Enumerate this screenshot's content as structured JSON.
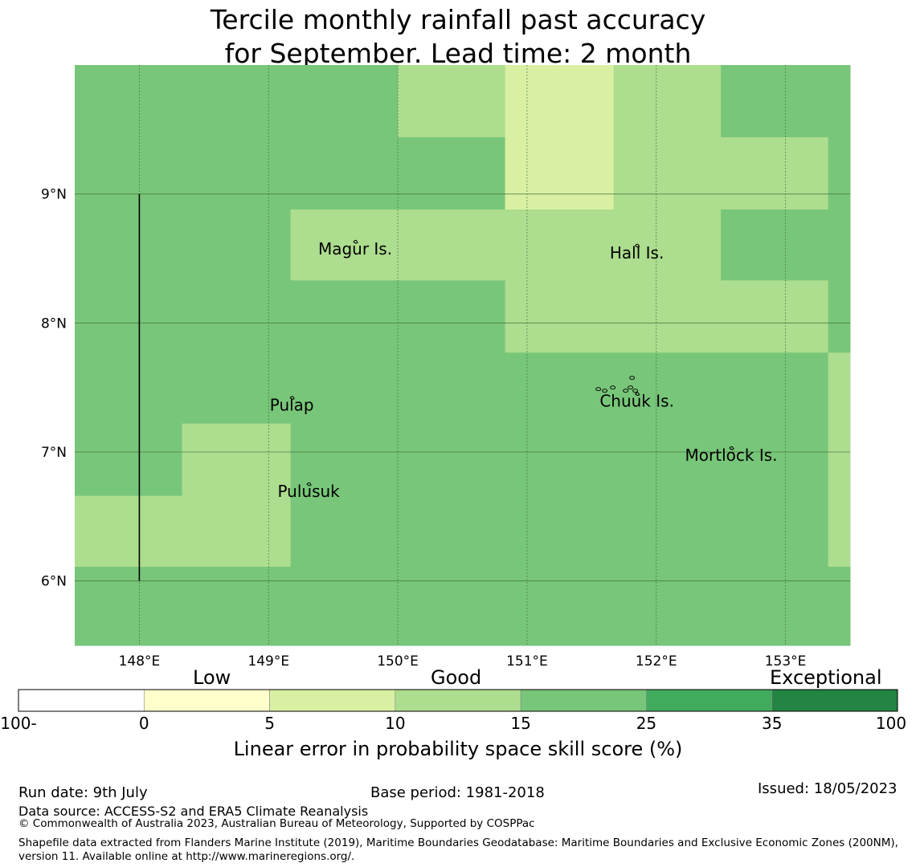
{
  "title_line1": "Tercile monthly rainfall past accuracy",
  "title_line2": "for September. Lead time: 2 month",
  "map": {
    "lon_range": [
      147.5,
      153.5
    ],
    "lat_range": [
      5.5,
      10.0
    ],
    "lon_ticks": [
      {
        "value": 148,
        "label": "148°E"
      },
      {
        "value": 149,
        "label": "149°E"
      },
      {
        "value": 150,
        "label": "150°E"
      },
      {
        "value": 151,
        "label": "151°E"
      },
      {
        "value": 152,
        "label": "152°E"
      },
      {
        "value": 153,
        "label": "153°E"
      }
    ],
    "lat_ticks": [
      {
        "value": 9,
        "label": "9°N"
      },
      {
        "value": 8,
        "label": "8°N"
      },
      {
        "value": 7,
        "label": "7°N"
      },
      {
        "value": 6,
        "label": "6°N"
      }
    ],
    "grid_lon_edges": [
      147.5,
      148.33,
      149.17,
      150.0,
      150.83,
      151.67,
      152.5,
      153.33,
      153.5
    ],
    "grid_lat_edges": [
      10.0,
      9.44,
      8.88,
      8.33,
      7.77,
      7.22,
      6.66,
      6.11,
      5.5
    ],
    "skill_grid": [
      [
        20,
        20,
        20,
        12,
        8,
        12,
        20,
        20
      ],
      [
        20,
        20,
        20,
        20,
        8,
        12,
        12,
        20
      ],
      [
        20,
        20,
        12,
        12,
        12,
        12,
        20,
        20
      ],
      [
        20,
        20,
        20,
        20,
        12,
        12,
        12,
        20
      ],
      [
        20,
        20,
        20,
        20,
        20,
        20,
        20,
        12
      ],
      [
        20,
        12,
        20,
        20,
        20,
        20,
        20,
        12
      ],
      [
        12,
        12,
        20,
        20,
        20,
        20,
        20,
        12
      ],
      [
        20,
        20,
        20,
        20,
        20,
        20,
        20,
        20
      ]
    ],
    "boundary_line": {
      "lon": 148.0,
      "lat_from": 6.0,
      "lat_to": 9.0
    },
    "islands": [
      {
        "name": "Magur Is.",
        "lon": 149.67,
        "lat": 8.58
      },
      {
        "name": "Hall Is.",
        "lon": 151.85,
        "lat": 8.55
      },
      {
        "name": "Pulap",
        "lon": 149.18,
        "lat": 7.37
      },
      {
        "name": "Chuuk Is.",
        "lon": 151.85,
        "lat": 7.4
      },
      {
        "name": "Mortlock Is.",
        "lon": 152.58,
        "lat": 6.98
      },
      {
        "name": "Pulusuk",
        "lon": 149.31,
        "lat": 6.7
      }
    ]
  },
  "colorbar": {
    "boundaries": [
      -100,
      0,
      5,
      10,
      15,
      25,
      35,
      100
    ],
    "tick_labels": [
      "-100",
      "0",
      "5",
      "10",
      "15",
      "25",
      "35",
      "100"
    ],
    "colors": [
      "#ffffff",
      "#ffffcc",
      "#d9f0a3",
      "#addd8e",
      "#78c679",
      "#41ab5d",
      "#238443"
    ],
    "band_labels": [
      "Low",
      "Good",
      "Exceptional"
    ],
    "label": "Linear error in probability space skill score (%)"
  },
  "footer": {
    "run_date": "Run date: 9th July",
    "base_period": "Base period: 1981-2018",
    "issued": "Issued: 18/05/2023",
    "data_source": "Data source: ACCESS-S2 and ERA5 Climate Reanalysis",
    "copyright": "© Commonwealth of Australia 2023, Australian Bureau of Meteorology, Supported by COSPPac",
    "shapefile": "Shapefile data extracted from Flanders Marine Institute (2019), Maritime Boundaries Geodatabase: Maritime Boundaries and Exclusive Economic Zones (200NM), version 11. Available online at http://www.marineregions.org/."
  }
}
